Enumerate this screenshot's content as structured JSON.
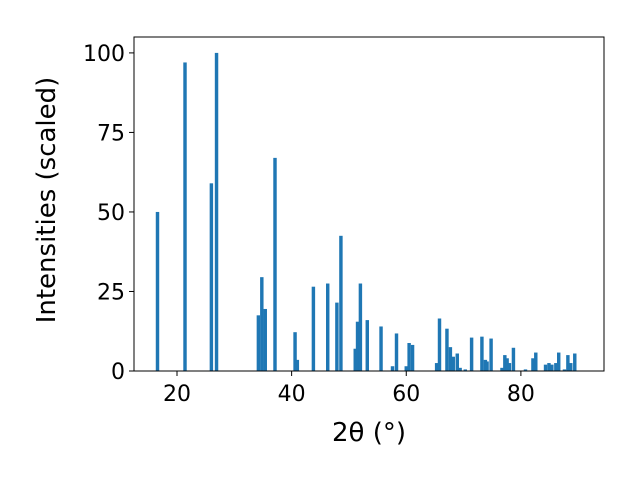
{
  "chart_data": {
    "type": "bar",
    "xlabel": "2θ (°)",
    "ylabel": "Intensities (scaled)",
    "xlim": [
      12.5,
      94.5
    ],
    "ylim": [
      0,
      105
    ],
    "xticks": [
      20,
      40,
      60,
      80
    ],
    "yticks": [
      0,
      25,
      50,
      75,
      100
    ],
    "grid": false,
    "bar_color": "#1f77b4",
    "bar_width_deg": 0.6,
    "x": [
      16.6,
      21.4,
      26.0,
      26.9,
      34.2,
      34.8,
      35.4,
      37.1,
      40.6,
      41.0,
      43.8,
      46.3,
      47.9,
      48.6,
      51.1,
      51.5,
      52.0,
      53.2,
      55.6,
      57.6,
      58.3,
      60.0,
      60.5,
      61.1,
      65.3,
      65.8,
      67.1,
      67.7,
      68.2,
      68.9,
      69.4,
      70.3,
      71.4,
      73.2,
      73.8,
      74.1,
      74.8,
      76.7,
      77.2,
      77.6,
      78.0,
      78.7,
      80.8,
      82.1,
      82.6,
      84.3,
      84.9,
      85.4,
      86.1,
      86.6,
      87.6,
      88.2,
      88.7,
      89.4
    ],
    "values": [
      50,
      97,
      59,
      100,
      17.5,
      29.5,
      19.5,
      67,
      12.2,
      3.5,
      26.5,
      27.5,
      21.5,
      42.5,
      7,
      15.5,
      27.5,
      16,
      14,
      1.5,
      11.8,
      1.5,
      8.8,
      8.2,
      2.5,
      16.5,
      13.3,
      7.5,
      4.5,
      5.5,
      1,
      0.5,
      10.5,
      10.8,
      3.5,
      3,
      10.2,
      1,
      5,
      4,
      2.5,
      7.3,
      0.5,
      4,
      5.8,
      2,
      2.5,
      2,
      2.5,
      5.8,
      0.5,
      5,
      2.5,
      5.5
    ]
  }
}
